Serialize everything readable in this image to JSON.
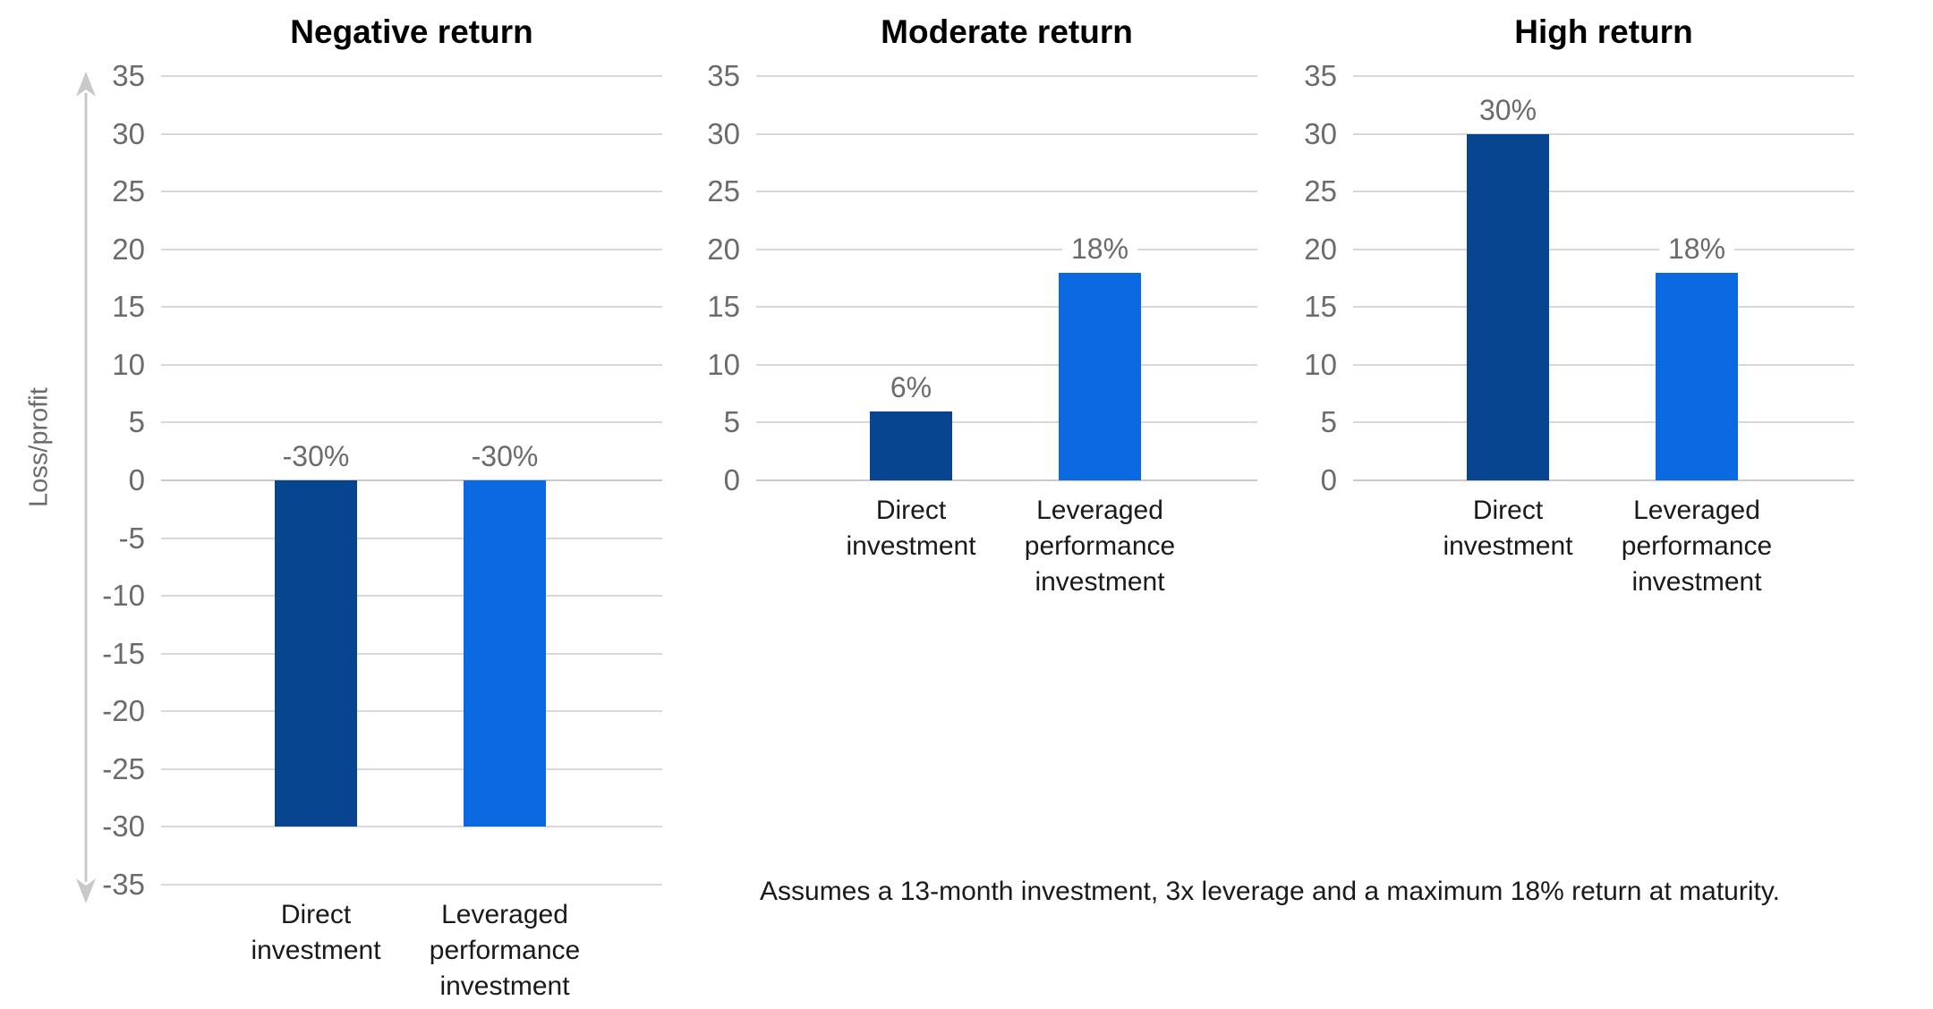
{
  "axis": {
    "y_title": "Loss/profit"
  },
  "footnote": "Assumes a 13-month investment, 3x leverage and a maximum 18% return at maturity.",
  "colors": {
    "direct": "#084590",
    "leveraged": "#0A69E1",
    "grid": "#D8D8D8",
    "baseline": "#C9C9C9",
    "tick_text": "#6B6B6B",
    "value_label_text": "#6B6B6B",
    "arrow": "#C9C9C9"
  },
  "chart_data": [
    {
      "type": "bar",
      "title": "Negative return",
      "categories": [
        "Direct investment",
        "Leveraged performance investment"
      ],
      "series": [
        {
          "name": "Direct investment",
          "values": [
            -30
          ]
        },
        {
          "name": "Leveraged performance investment",
          "values": [
            -30
          ]
        }
      ],
      "values": [
        -30,
        -30
      ],
      "value_labels": [
        "-30%",
        "-30%"
      ],
      "ylabel": "Loss/profit",
      "ylim": [
        -35,
        35
      ],
      "ytick_step": 5,
      "grid": true,
      "legend": "none"
    },
    {
      "type": "bar",
      "title": "Moderate return",
      "categories": [
        "Direct investment",
        "Leveraged performance investment"
      ],
      "series": [
        {
          "name": "Direct investment",
          "values": [
            6
          ]
        },
        {
          "name": "Leveraged performance investment",
          "values": [
            18
          ]
        }
      ],
      "values": [
        6,
        18
      ],
      "value_labels": [
        "6%",
        "18%"
      ],
      "ylim": [
        0,
        35
      ],
      "ytick_step": 5,
      "grid": true,
      "legend": "none"
    },
    {
      "type": "bar",
      "title": "High return",
      "categories": [
        "Direct investment",
        "Leveraged performance investment"
      ],
      "series": [
        {
          "name": "Direct investment",
          "values": [
            30
          ]
        },
        {
          "name": "Leveraged performance investment",
          "values": [
            18
          ]
        }
      ],
      "values": [
        30,
        18
      ],
      "value_labels": [
        "30%",
        "18%"
      ],
      "ylim": [
        0,
        35
      ],
      "ytick_step": 5,
      "grid": true,
      "legend": "none"
    }
  ]
}
